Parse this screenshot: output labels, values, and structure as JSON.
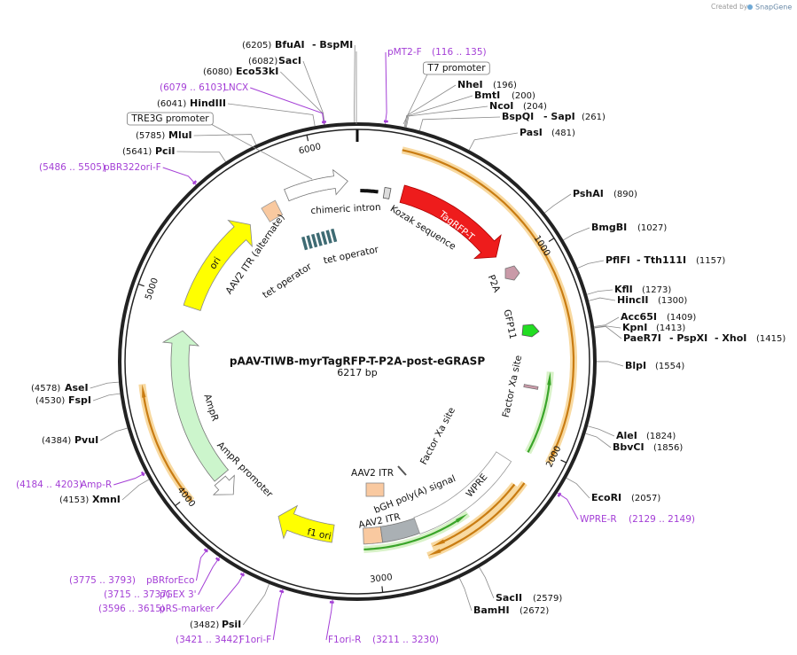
{
  "watermark": {
    "created_by": "Created by",
    "brand": "SnapGene"
  },
  "map": {
    "title": "pAAV-TIWB-myrTagRFP-T-P2A-post-eGRASP",
    "length": "6217 bp",
    "ticks": [
      1000,
      2000,
      3000,
      4000,
      5000,
      6000
    ],
    "sites": [
      {
        "position": "(6205)",
        "names": [
          "BfuAI",
          "- BspMI"
        ]
      },
      {
        "position": "(6082)",
        "names": [
          "SacI"
        ]
      },
      {
        "position": "(6080)",
        "names": [
          "Eco53kI"
        ]
      },
      {
        "position": "(6041)",
        "names": [
          "HindIII"
        ]
      },
      {
        "position": "(5785)",
        "names": [
          "MluI"
        ]
      },
      {
        "position": "(5641)",
        "names": [
          "PciI"
        ]
      },
      {
        "position": "(196)",
        "names": [
          "NheI"
        ]
      },
      {
        "position": "(200)",
        "names": [
          "BmtI"
        ]
      },
      {
        "position": "(204)",
        "names": [
          "NcoI"
        ]
      },
      {
        "position": "(261)",
        "names": [
          "BspQI",
          "- SapI"
        ]
      },
      {
        "position": "(481)",
        "names": [
          "PasI"
        ]
      },
      {
        "position": "(890)",
        "names": [
          "PshAI"
        ]
      },
      {
        "position": "(1027)",
        "names": [
          "BmgBI"
        ]
      },
      {
        "position": "(1157)",
        "names": [
          "PflFI",
          "- Tth111I"
        ]
      },
      {
        "position": "(1273)",
        "names": [
          "KflI"
        ]
      },
      {
        "position": "(1300)",
        "names": [
          "HincII"
        ]
      },
      {
        "position": "(1409)",
        "names": [
          "Acc65I"
        ]
      },
      {
        "position": "(1413)",
        "names": [
          "KpnI"
        ]
      },
      {
        "position": "(1415)",
        "names": [
          "PaeR7I",
          "- PspXI",
          "- XhoI"
        ]
      },
      {
        "position": "(1554)",
        "names": [
          "BlpI"
        ]
      },
      {
        "position": "(1824)",
        "names": [
          "AleI"
        ]
      },
      {
        "position": "(1856)",
        "names": [
          "BbvCI"
        ]
      },
      {
        "position": "(2057)",
        "names": [
          "EcoRI"
        ]
      },
      {
        "position": "(2579)",
        "names": [
          "SacII"
        ]
      },
      {
        "position": "(2672)",
        "names": [
          "BamHI"
        ]
      },
      {
        "position": "(3482)",
        "names": [
          "PsiI"
        ]
      },
      {
        "position": "(4153)",
        "names": [
          "XmnI"
        ]
      },
      {
        "position": "(4384)",
        "names": [
          "PvuI"
        ]
      },
      {
        "position": "(4530)",
        "names": [
          "FspI"
        ]
      },
      {
        "position": "(4578)",
        "names": [
          "AseI"
        ]
      }
    ],
    "primers": [
      {
        "range": "(6079 .. 6103)",
        "name": "LNCX"
      },
      {
        "range": "(5486 .. 5505)",
        "name": "pBR322ori-F"
      },
      {
        "range": "(116 .. 135)",
        "name": "pMT2-F"
      },
      {
        "range": "(2129 .. 2149)",
        "name": "WPRE-R"
      },
      {
        "range": "(3211 .. 3230)",
        "name": "F1ori-R"
      },
      {
        "range": "(3421 .. 3442)",
        "name": "F1ori-F"
      },
      {
        "range": "(3596 .. 3615)",
        "name": "pRS-marker"
      },
      {
        "range": "(3715 .. 3737)",
        "name": "pGEX 3'"
      },
      {
        "range": "(3775 .. 3793)",
        "name": "pBRforEco"
      },
      {
        "range": "(4184 .. 4203)",
        "name": "Amp-R"
      }
    ],
    "features": [
      "TRE3G promoter",
      "T7 promoter",
      "TagRFP-T",
      "Kozak sequence",
      "chimeric intron",
      "AAV2 ITR (alternate)",
      "ori",
      "tet operator",
      "tet operator",
      "P2A",
      "GFP11",
      "Factor Xa site",
      "Factor Xa site",
      "WPRE",
      "bGH poly(A) signal",
      "AAV2 ITR",
      "AAV2 ITR",
      "f1 ori",
      "AmpR",
      "AmpR promoter"
    ]
  }
}
